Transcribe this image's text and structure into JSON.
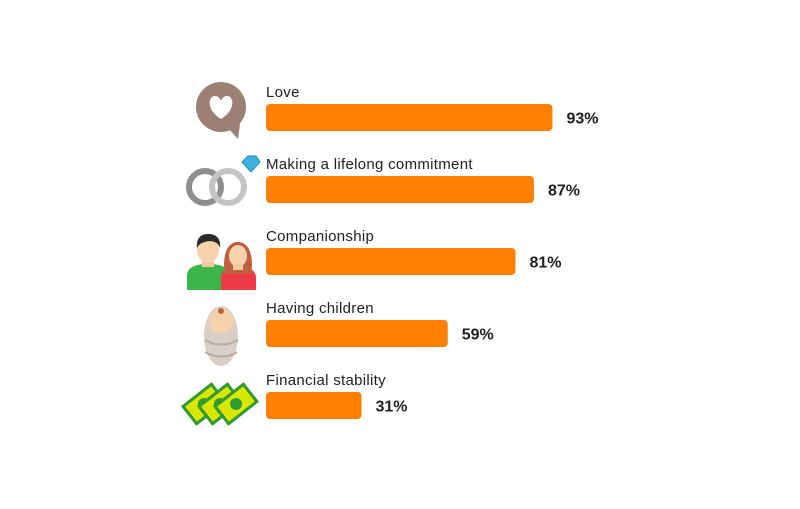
{
  "chart_data": {
    "type": "bar",
    "orientation": "horizontal",
    "categories": [
      "Love",
      "Making a lifelong commitment",
      "Companionship",
      "Having children",
      "Financial stability"
    ],
    "values": [
      93,
      87,
      81,
      59,
      31
    ],
    "value_labels": [
      "93%",
      "87%",
      "81%",
      "59%",
      "31%"
    ],
    "icons": [
      "speech-heart-icon",
      "wedding-rings-icon",
      "couple-icon",
      "baby-icon",
      "money-icon"
    ],
    "xlim": [
      0,
      100
    ],
    "bar_color": "#ff7f00"
  }
}
